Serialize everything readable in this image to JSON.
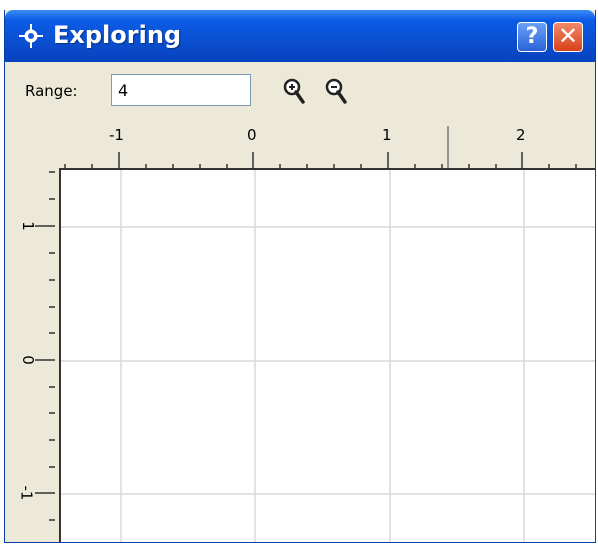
{
  "window": {
    "title": "Exploring",
    "help_label": "?",
    "close_label": "✕"
  },
  "toolbar": {
    "range_label": "Range:",
    "range_value": "4"
  },
  "icons": {
    "title": "crosshair-icon",
    "zoom_in": "zoom-in-icon",
    "zoom_out": "zoom-out-icon"
  },
  "colors": {
    "titlebar": "#0a4fd0",
    "close": "#d8411a",
    "grid": "#d9d9d9"
  },
  "axes": {
    "x_ticks": [
      "-1",
      "0",
      "1",
      "2"
    ],
    "y_ticks": [
      "1",
      "0",
      "-1"
    ]
  }
}
